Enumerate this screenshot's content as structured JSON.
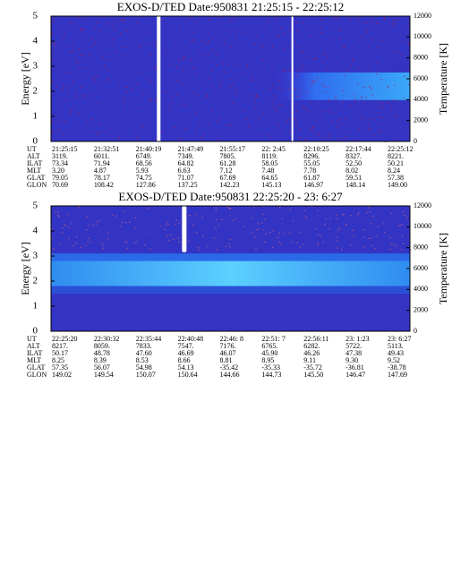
{
  "chart_data": [
    {
      "type": "heatmap",
      "title": "EXOS-D/TED   Date:950831  21:25:15 - 22:25:12",
      "ylabel": "Energy [eV]",
      "y2label": "Temperature [K]",
      "ylim": [
        0,
        5
      ],
      "yticks": [
        0,
        1,
        2,
        3,
        4,
        5
      ],
      "y2lim": [
        0,
        12000
      ],
      "y2ticks": [
        0,
        2000,
        4000,
        6000,
        8000,
        10000,
        12000
      ],
      "ephemeris": [
        {
          "label": "UT",
          "values": [
            "21:25:15",
            "21:32:51",
            "21:40:19",
            "21:47:49",
            "21:55:17",
            "22: 2:45",
            "22:10:25",
            "22:17:44",
            "22:25:12"
          ]
        },
        {
          "label": "ALT",
          "values": [
            "3119.",
            "6011.",
            "6749.",
            "7349.",
            "7805.",
            "8119.",
            "8296.",
            "8327.",
            "8221."
          ]
        },
        {
          "label": "ILAT",
          "values": [
            "73.34",
            "71.94",
            "68.56",
            "64.82",
            "61.28",
            "58.05",
            "55.05",
            "52.50",
            "50.21"
          ]
        },
        {
          "label": "MLT",
          "values": [
            "3.20",
            "4.87",
            "5.93",
            "6.63",
            "7.12",
            "7.48",
            "7.78",
            "8.02",
            "8.24"
          ]
        },
        {
          "label": "GLAT",
          "values": [
            "79.05",
            "78.17",
            "74.75",
            "71.07",
            "67.69",
            "64.65",
            "61.87",
            "59.51",
            "57.38"
          ]
        },
        {
          "label": "GLON",
          "values": [
            "70.69",
            "108.42",
            "127.86",
            "137.25",
            "142.23",
            "145.13",
            "146.97",
            "148.14",
            "149.00"
          ]
        }
      ]
    },
    {
      "type": "heatmap",
      "title": "EXOS-D/TED   Date:950831  22:25:20 - 23: 6:27",
      "ylabel": "Energy [eV]",
      "y2label": "Temperature [K]",
      "ylim": [
        0,
        5
      ],
      "yticks": [
        0,
        1,
        2,
        3,
        4,
        5
      ],
      "y2lim": [
        0,
        12000
      ],
      "y2ticks": [
        0,
        2000,
        4000,
        6000,
        8000,
        10000,
        12000
      ],
      "ephemeris": [
        {
          "label": "UT",
          "values": [
            "22:25:20",
            "22:30:32",
            "22:35:44",
            "22:40:48",
            "22:46: 8",
            "22:51: 7",
            "22:56:11",
            "23: 1:23",
            "23: 6:27"
          ]
        },
        {
          "label": "ALT",
          "values": [
            "8217.",
            "8059.",
            "7833.",
            "7547.",
            "7176.",
            "6765.",
            "6282.",
            "5722.",
            "5113."
          ]
        },
        {
          "label": "ILAT",
          "values": [
            "50.17",
            "48.78",
            "47.60",
            "46.69",
            "46.07",
            "45.90",
            "46.26",
            "47.38",
            "49.43"
          ]
        },
        {
          "label": "MLT",
          "values": [
            "8.25",
            "8.39",
            "8.53",
            "8.66",
            "8.81",
            "8.95",
            "9.11",
            "9.30",
            "9.52"
          ]
        },
        {
          "label": "GLAT",
          "values": [
            "57.35",
            "56.07",
            "54.98",
            "54.13",
            "-35.42",
            "-35.33",
            "-35.72",
            "-36.81",
            "-38.78"
          ]
        },
        {
          "label": "GLON",
          "values": [
            "149.02",
            "149.54",
            "150.07",
            "150.64",
            "144.66",
            "144.73",
            "145.50",
            "146.47",
            "147.69"
          ]
        }
      ]
    }
  ]
}
